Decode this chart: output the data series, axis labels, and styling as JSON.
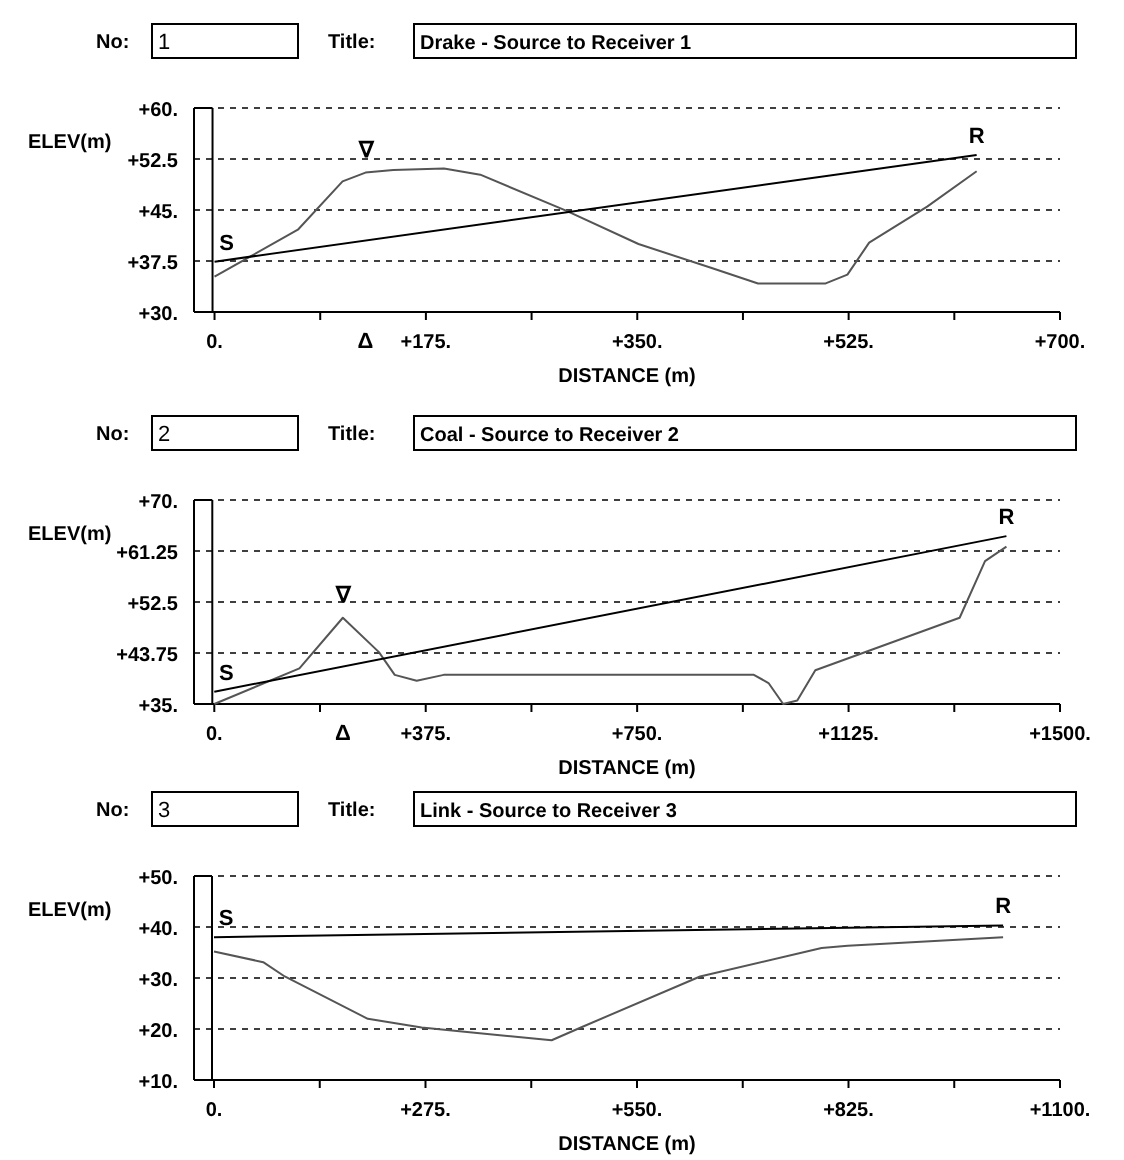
{
  "chart_data": [
    {
      "type": "line",
      "title": "Drake - Source to Receiver 1",
      "xlabel": "DISTANCE (m)",
      "ylabel": "ELEV(m)",
      "grid": "y",
      "marker": "none",
      "xlim": [
        -17,
        700
      ],
      "xticks": [
        {
          "value": 0,
          "label": "0."
        },
        {
          "value": 87.5,
          "label": null
        },
        {
          "value": 175,
          "label": "+175."
        },
        {
          "value": 262.5,
          "label": null
        },
        {
          "value": 350,
          "label": "+350."
        },
        {
          "value": 437.5,
          "label": null
        },
        {
          "value": 525,
          "label": "+525."
        },
        {
          "value": 612.5,
          "label": null
        },
        {
          "value": 700,
          "label": "+700."
        }
      ],
      "ylim": [
        30,
        60
      ],
      "yticks": [
        {
          "value": 30,
          "label": "+30."
        },
        {
          "value": 37.5,
          "label": "+37.5"
        },
        {
          "value": 45,
          "label": "+45."
        },
        {
          "value": 52.5,
          "label": "+52.5"
        },
        {
          "value": 60,
          "label": "+60."
        }
      ],
      "series": [
        {
          "color": "#555555",
          "x": [
            0,
            69,
            106,
            125,
            148,
            190,
            220,
            291,
            351,
            411,
            450,
            506,
            524,
            542,
            590,
            631
          ],
          "values": [
            35.2,
            42.1,
            49.2,
            50.5,
            50.9,
            51.1,
            50.2,
            44.9,
            40,
            36.5,
            34.2,
            34.2,
            35.5,
            40.2,
            45.5,
            50.7
          ]
        },
        {
          "color": "#000000",
          "x": [
            0,
            631
          ],
          "values": [
            37.4,
            53.1
          ]
        }
      ],
      "annotations": [
        "No:",
        "1",
        "Title:",
        {
          "text": "S",
          "x": 0,
          "y": 37.4
        },
        {
          "text": "R",
          "x": 631,
          "y": 53.1
        },
        "∇",
        "Δ"
      ]
    },
    {
      "type": "line",
      "title": "Coal - Source to Receiver 2",
      "xlabel": "DISTANCE (m)",
      "ylabel": "ELEV(m)",
      "grid": "y",
      "marker": "none",
      "xlim": [
        -36,
        1500
      ],
      "xticks": [
        {
          "value": 0,
          "label": "0."
        },
        {
          "value": 187.5,
          "label": null
        },
        {
          "value": 375,
          "label": "+375."
        },
        {
          "value": 562.5,
          "label": null
        },
        {
          "value": 750,
          "label": "+750."
        },
        {
          "value": 937.5,
          "label": null
        },
        {
          "value": 1125,
          "label": "+1125."
        },
        {
          "value": 1312.5,
          "label": null
        },
        {
          "value": 1500,
          "label": "+1500."
        }
      ],
      "ylim": [
        35,
        70
      ],
      "yticks": [
        {
          "value": 35,
          "label": "+35."
        },
        {
          "value": 43.75,
          "label": "+43.75"
        },
        {
          "value": 52.5,
          "label": "+52.5"
        },
        {
          "value": 61.25,
          "label": "+61.25"
        },
        {
          "value": 70,
          "label": "+70."
        }
      ],
      "series": [
        {
          "color": "#555555",
          "x": [
            0,
            151,
            228,
            292,
            320,
            359,
            407,
            957,
            983,
            1009,
            1034,
            1066,
            1322,
            1367,
            1405
          ],
          "values": [
            35,
            41.1,
            49.8,
            43.9,
            40,
            39,
            40,
            40,
            38.6,
            35,
            35.6,
            40.8,
            49.8,
            59.5,
            62
          ]
        },
        {
          "color": "#000000",
          "x": [
            0,
            1405
          ],
          "values": [
            37.1,
            63.8
          ]
        }
      ],
      "annotations": [
        "No:",
        "2",
        "Title:",
        {
          "text": "S",
          "x": 0,
          "y": 37.1
        },
        {
          "text": "R",
          "x": 1405,
          "y": 63.8
        },
        "∇",
        "Δ"
      ]
    },
    {
      "type": "line",
      "title": "Link - Source to Receiver 3",
      "xlabel": "DISTANCE (m)",
      "ylabel": "ELEV(m)",
      "grid": "y",
      "marker": "none",
      "xlim": [
        -26,
        1100
      ],
      "xticks": [
        {
          "value": 0,
          "label": "0."
        },
        {
          "value": 137.5,
          "label": null
        },
        {
          "value": 275,
          "label": "+275."
        },
        {
          "value": 412.5,
          "label": null
        },
        {
          "value": 550,
          "label": "+550."
        },
        {
          "value": 687.5,
          "label": null
        },
        {
          "value": 825,
          "label": "+825."
        },
        {
          "value": 962.5,
          "label": null
        },
        {
          "value": 1100,
          "label": "+1100."
        }
      ],
      "ylim": [
        10,
        50
      ],
      "yticks": [
        {
          "value": 10,
          "label": "+10."
        },
        {
          "value": 20,
          "label": "+20."
        },
        {
          "value": 30,
          "label": "+30."
        },
        {
          "value": 40,
          "label": "+40."
        },
        {
          "value": 50,
          "label": "+50."
        }
      ],
      "series": [
        {
          "color": "#555555",
          "x": [
            0,
            64,
            92,
            200,
            270,
            439,
            477,
            632,
            790,
            824,
            1026
          ],
          "values": [
            35.2,
            33.1,
            30.3,
            22,
            20.3,
            17.8,
            20.3,
            30.3,
            35.9,
            36.3,
            38
          ]
        },
        {
          "color": "#000000",
          "x": [
            0,
            1026
          ],
          "values": [
            38,
            40.3
          ]
        }
      ],
      "annotations": [
        "No:",
        "3",
        "Title:",
        {
          "text": "S",
          "x": 0,
          "y": 38
        },
        {
          "text": "R",
          "x": 1026,
          "y": 40.3
        }
      ]
    }
  ]
}
